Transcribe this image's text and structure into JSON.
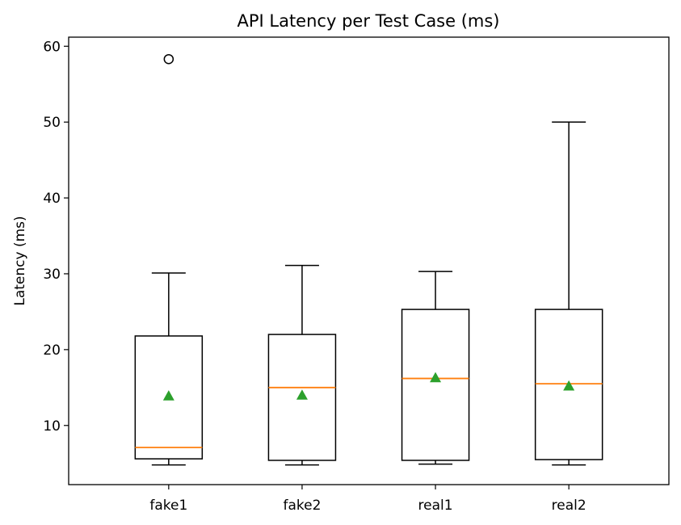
{
  "chart_data": {
    "type": "box",
    "title": "API Latency per Test Case (ms)",
    "xlabel": "",
    "ylabel": "Latency (ms)",
    "ylim": [
      2.2,
      61.2
    ],
    "yticks": [
      10,
      20,
      30,
      40,
      50,
      60
    ],
    "grid": false,
    "categories": [
      "fake1",
      "fake2",
      "real1",
      "real2"
    ],
    "boxes": [
      {
        "label": "fake1",
        "whisker_low": 4.8,
        "q1": 5.6,
        "median": 7.1,
        "q3": 21.8,
        "whisker_high": 30.1,
        "mean": 13.9,
        "outliers": [
          58.3
        ]
      },
      {
        "label": "fake2",
        "whisker_low": 4.8,
        "q1": 5.4,
        "median": 15.0,
        "q3": 22.0,
        "whisker_high": 31.1,
        "mean": 14.0,
        "outliers": []
      },
      {
        "label": "real1",
        "whisker_low": 4.9,
        "q1": 5.4,
        "median": 16.2,
        "q3": 25.3,
        "whisker_high": 30.3,
        "mean": 16.3,
        "outliers": []
      },
      {
        "label": "real2",
        "whisker_low": 4.8,
        "q1": 5.5,
        "median": 15.5,
        "q3": 25.3,
        "whisker_high": 50.0,
        "mean": 15.2,
        "outliers": []
      }
    ],
    "colors": {
      "box": "#000000",
      "median": "#ff7f0e",
      "mean": "#2ca02c",
      "outlier": "#000000"
    }
  }
}
